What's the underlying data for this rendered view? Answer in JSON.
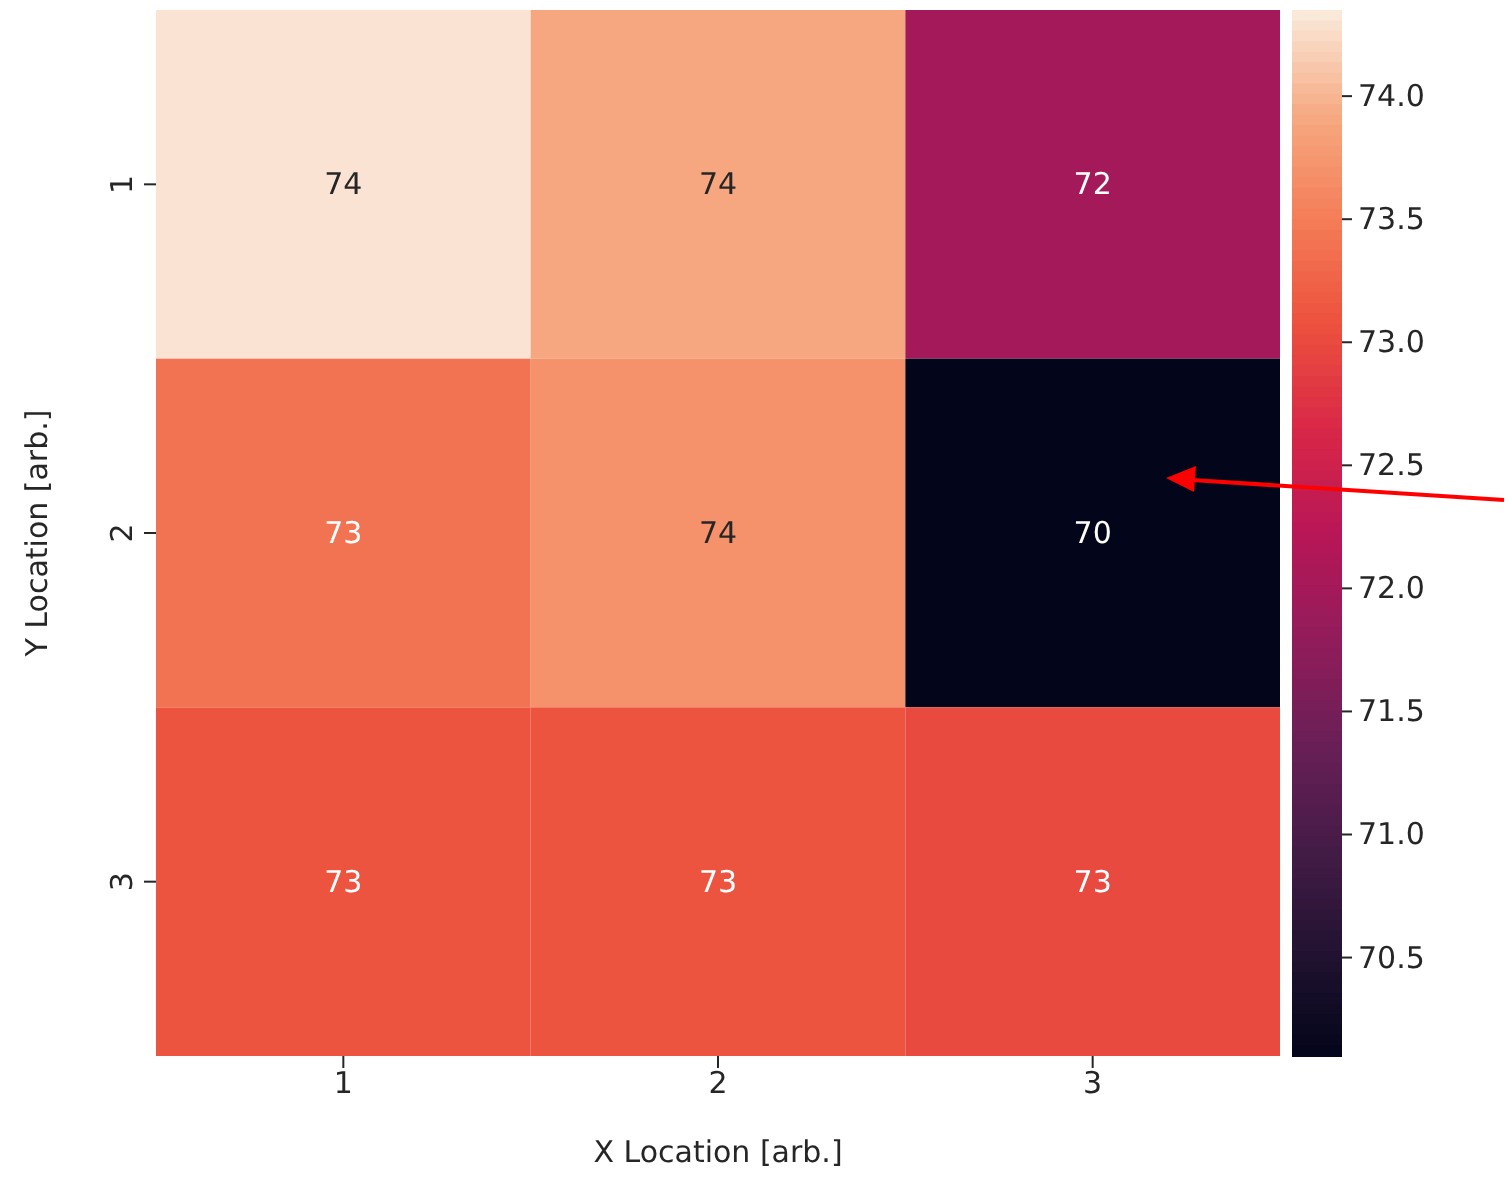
{
  "chart_data": {
    "type": "heatmap",
    "xlabel": "X Location [arb.]",
    "ylabel": "Y Location [arb.]",
    "categories": [
      "1",
      "2",
      "3"
    ],
    "y_categories": [
      "1",
      "2",
      "3"
    ],
    "cells": [
      [
        74.3,
        73.9,
        72.0
      ],
      [
        73.4,
        73.7,
        70.1
      ],
      [
        73.1,
        73.1,
        73.0
      ]
    ],
    "cell_labels": [
      [
        "74",
        "74",
        "72"
      ],
      [
        "73",
        "74",
        "70"
      ],
      [
        "73",
        "73",
        "73"
      ]
    ],
    "clim": [
      70.1,
      74.35
    ],
    "cticks": [
      70.5,
      {
        "value": 71,
        "label": "71.0"
      },
      71.5,
      {
        "value": 72,
        "label": "72.0"
      },
      72.5,
      {
        "value": 73,
        "label": "73.0"
      },
      73.5,
      {
        "value": 74,
        "label": "74.0"
      }
    ]
  }
}
